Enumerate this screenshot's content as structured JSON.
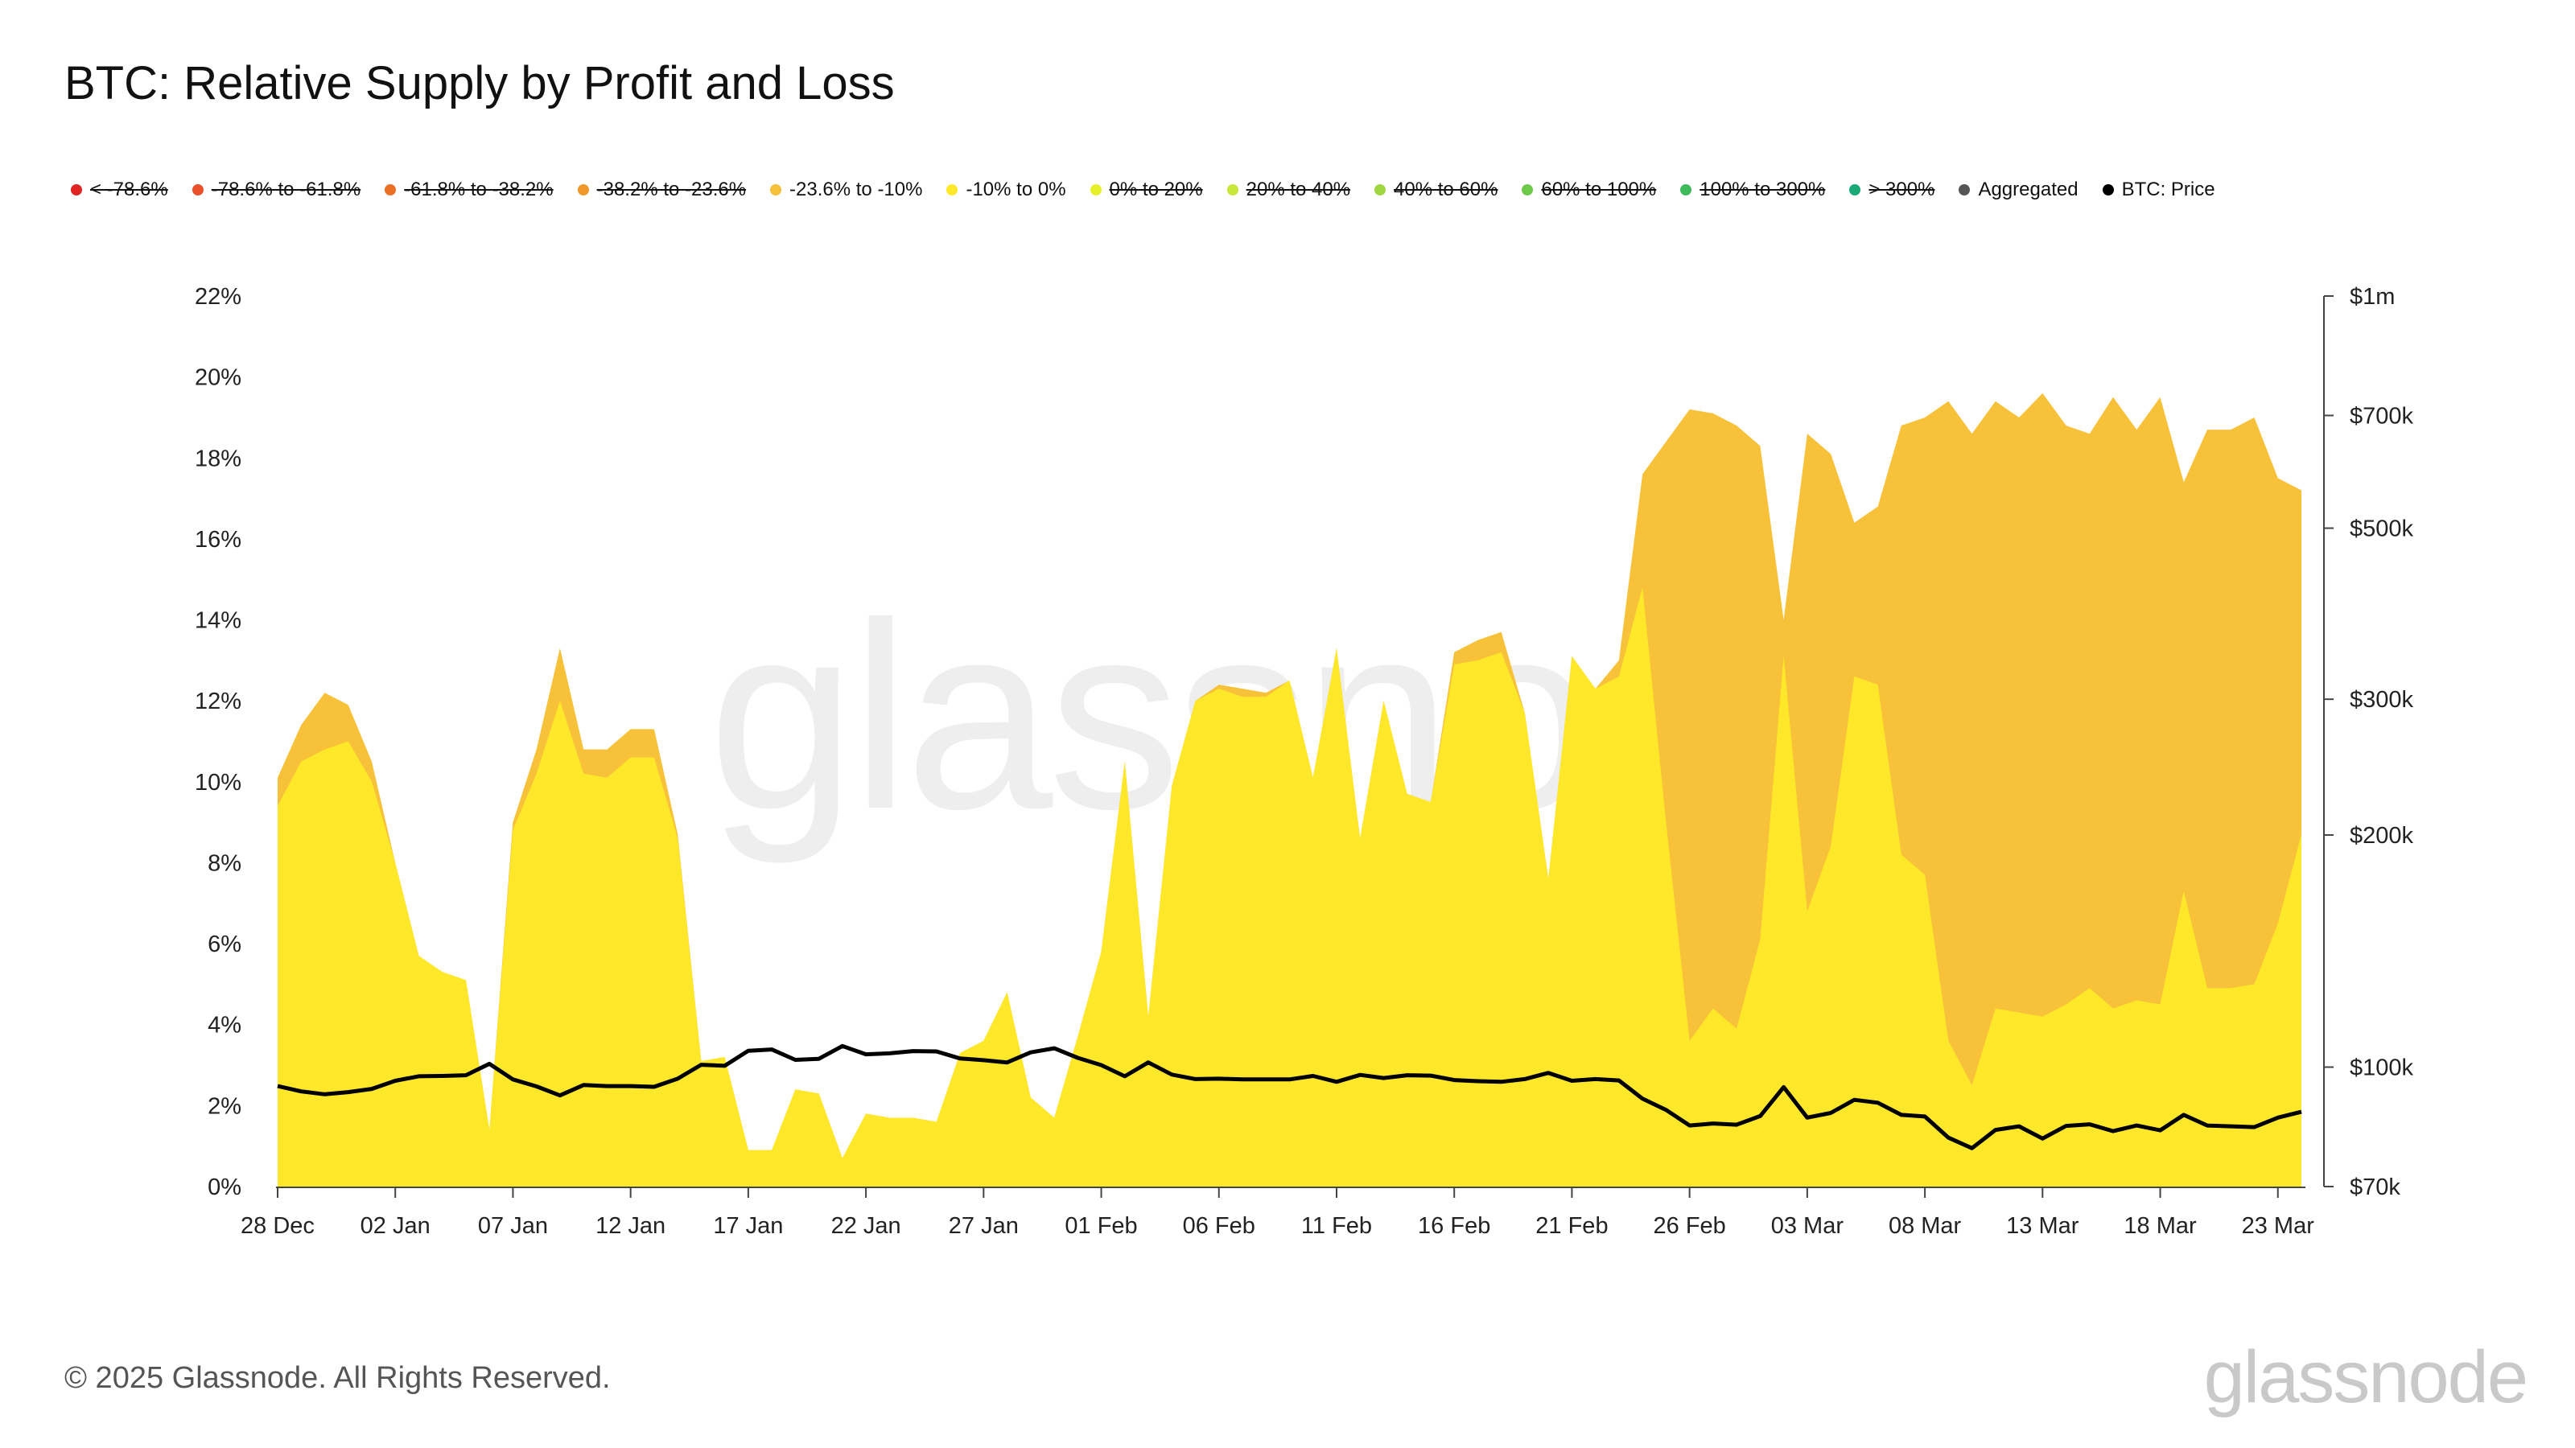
{
  "title": "BTC: Relative Supply by Profit and Loss",
  "footer": "© 2025 Glassnode. All Rights Reserved.",
  "brand": "glassnode",
  "watermark": "glassnode",
  "legend": [
    {
      "label": "< -78.6%",
      "color": "#e02424",
      "hidden": true
    },
    {
      "label": "-78.6% to -61.8%",
      "color": "#e8512a",
      "hidden": true
    },
    {
      "label": "-61.8% to -38.2%",
      "color": "#ec6f25",
      "hidden": true
    },
    {
      "label": "-38.2% to -23.6%",
      "color": "#f0972a",
      "hidden": true
    },
    {
      "label": "-23.6% to -10%",
      "color": "#f8c13a",
      "hidden": false
    },
    {
      "label": "-10% to 0%",
      "color": "#ffe82a",
      "hidden": false
    },
    {
      "label": "0% to 20%",
      "color": "#e6ef28",
      "hidden": true
    },
    {
      "label": "20% to 40%",
      "color": "#c8e63a",
      "hidden": true
    },
    {
      "label": "40% to 60%",
      "color": "#9ed642",
      "hidden": true
    },
    {
      "label": "60% to 100%",
      "color": "#6ec94a",
      "hidden": true
    },
    {
      "label": "100% to 300%",
      "color": "#3fba5a",
      "hidden": true
    },
    {
      "label": "> 300%",
      "color": "#1aa876",
      "hidden": true
    },
    {
      "label": "Aggregated",
      "color": "#555555",
      "hidden": false
    },
    {
      "label": "BTC: Price",
      "color": "#000000",
      "hidden": false
    }
  ],
  "chart_data": {
    "type": "area",
    "x_tick_labels": [
      "28 Dec",
      "02 Jan",
      "07 Jan",
      "12 Jan",
      "17 Jan",
      "22 Jan",
      "27 Jan",
      "01 Feb",
      "06 Feb",
      "11 Feb",
      "16 Feb",
      "21 Feb",
      "26 Feb",
      "03 Mar",
      "08 Mar",
      "13 Mar",
      "18 Mar",
      "23 Mar"
    ],
    "y_left": {
      "ticks": [
        "0%",
        "2%",
        "4%",
        "6%",
        "8%",
        "10%",
        "12%",
        "14%",
        "16%",
        "18%",
        "20%",
        "22%"
      ],
      "min": 0,
      "max": 22,
      "unit": "%"
    },
    "y_right": {
      "ticks": [
        "$70k",
        "$100k",
        "$200k",
        "$300k",
        "$500k",
        "$700k",
        "$1m"
      ],
      "tick_values": [
        70000,
        100000,
        200000,
        300000,
        500000,
        700000,
        1000000
      ],
      "scale": "log",
      "min": 70000,
      "max": 1000000
    },
    "x_start": "2024-12-28",
    "series": [
      {
        "name": "-23.6% to -10%",
        "color": "#f8c13a",
        "stacked_total": true,
        "values": [
          10.1,
          11.4,
          12.2,
          11.9,
          10.5,
          8.0,
          5.7,
          5.3,
          5.1,
          1.4,
          9.0,
          10.8,
          13.3,
          10.8,
          10.8,
          11.3,
          11.3,
          8.7,
          3.1,
          3.2,
          0.9,
          0.9,
          2.4,
          2.3,
          0.7,
          1.8,
          1.7,
          1.7,
          1.6,
          3.3,
          3.6,
          4.8,
          2.2,
          1.7,
          3.7,
          5.8,
          10.5,
          4.2,
          9.9,
          12.0,
          12.4,
          12.3,
          12.2,
          12.5,
          10.1,
          13.3,
          8.6,
          12.0,
          9.7,
          9.5,
          13.2,
          13.5,
          13.7,
          11.7,
          7.6,
          13.1,
          12.3,
          13.0,
          17.6,
          18.4,
          19.2,
          19.1,
          18.8,
          18.3,
          14.0,
          18.6,
          18.1,
          16.4,
          16.8,
          18.8,
          19.0,
          19.4,
          18.6,
          19.4,
          19.0,
          19.6,
          18.8,
          18.6,
          19.5,
          18.7,
          19.5,
          17.4,
          18.7,
          18.7,
          19.0,
          17.5,
          17.2
        ]
      },
      {
        "name": "-10% to 0%",
        "color": "#ffe82a",
        "values": [
          9.4,
          10.5,
          10.8,
          11.0,
          10.0,
          8.0,
          5.7,
          5.3,
          5.1,
          1.4,
          8.8,
          10.2,
          12.0,
          10.2,
          10.1,
          10.6,
          10.6,
          8.6,
          3.1,
          3.2,
          0.9,
          0.9,
          2.4,
          2.3,
          0.7,
          1.8,
          1.7,
          1.7,
          1.6,
          3.3,
          3.6,
          4.8,
          2.2,
          1.7,
          3.7,
          5.8,
          10.5,
          4.2,
          9.9,
          12.0,
          12.3,
          12.1,
          12.1,
          12.5,
          10.1,
          13.3,
          8.6,
          12.0,
          9.7,
          9.5,
          12.9,
          13.0,
          13.2,
          11.7,
          7.6,
          13.1,
          12.3,
          12.6,
          14.8,
          9.0,
          3.6,
          4.4,
          3.9,
          6.1,
          13.1,
          6.8,
          8.4,
          12.6,
          12.4,
          8.2,
          7.7,
          3.6,
          2.5,
          4.4,
          4.3,
          4.2,
          4.5,
          4.9,
          4.4,
          4.6,
          4.5,
          7.3,
          4.9,
          4.9,
          5.0,
          6.5,
          8.7
        ]
      },
      {
        "name": "BTC: Price",
        "color": "#000000",
        "axis": "right",
        "values": [
          94500,
          93000,
          92200,
          92800,
          93700,
          96000,
          97300,
          97400,
          97600,
          101000,
          96400,
          94400,
          91900,
          94800,
          94500,
          94500,
          94300,
          96600,
          100700,
          100400,
          105000,
          105400,
          102200,
          102500,
          106500,
          103900,
          104200,
          104900,
          104800,
          102600,
          102100,
          101400,
          104500,
          105800,
          102800,
          100600,
          97300,
          101400,
          97800,
          96500,
          96600,
          96400,
          96400,
          96400,
          97400,
          95700,
          97700,
          96800,
          97600,
          97500,
          96200,
          95900,
          95700,
          96500,
          98300,
          96000,
          96500,
          96100,
          91000,
          88000,
          84000,
          84500,
          84200,
          86400,
          94200,
          86000,
          87200,
          90700,
          89900,
          86700,
          86300,
          81000,
          78500,
          82900,
          83800,
          80800,
          83900,
          84300,
          82600,
          84000,
          82800,
          86700,
          84000,
          83800,
          83600,
          86000,
          87500
        ]
      }
    ]
  }
}
